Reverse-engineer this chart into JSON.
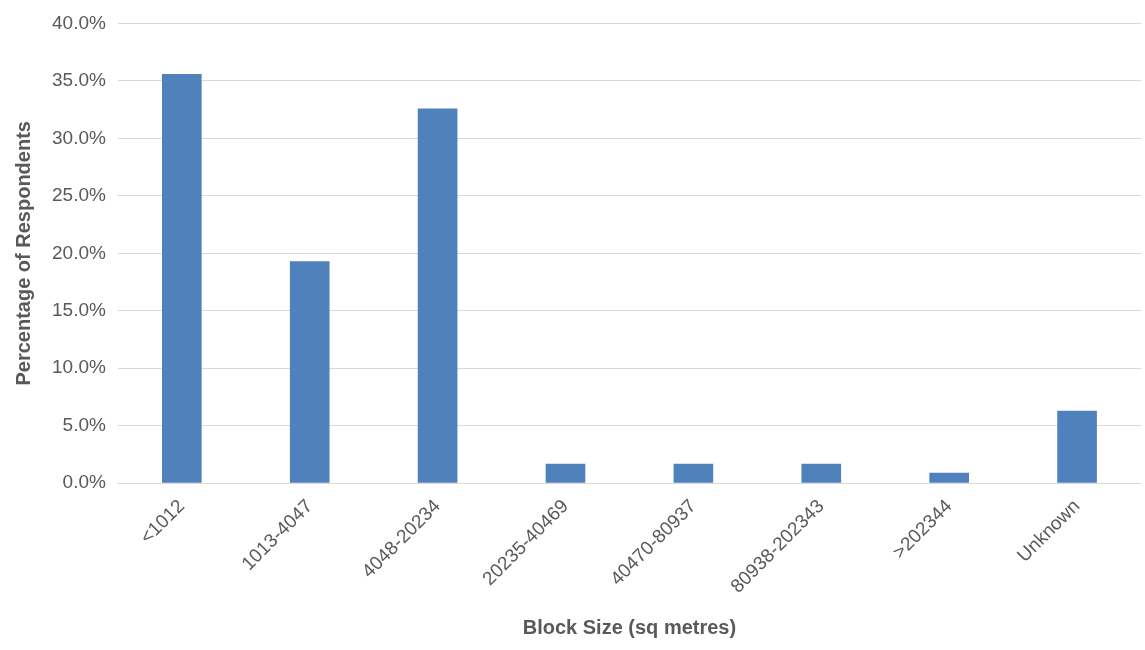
{
  "chart_data": {
    "type": "bar",
    "xlabel": "Block Size (sq metres)",
    "ylabel": "Percentage of Respondents",
    "categories": [
      "<1012",
      "1013-4047",
      "4048-20234",
      "20235-40469",
      "40470-80937",
      "80938-202343",
      ">202344",
      "Unknown"
    ],
    "values": [
      35.6,
      19.3,
      32.6,
      1.7,
      1.7,
      1.7,
      0.9,
      6.3
    ],
    "color": "#4f81bd",
    "ylim": [
      0,
      40
    ],
    "yticks": [
      {
        "value": 0,
        "label": "0.0%"
      },
      {
        "value": 5,
        "label": "5.0%"
      },
      {
        "value": 10,
        "label": "10.0%"
      },
      {
        "value": 15,
        "label": "15.0%"
      },
      {
        "value": 20,
        "label": "20.0%"
      },
      {
        "value": 25,
        "label": "25.0%"
      },
      {
        "value": 30,
        "label": "30.0%"
      },
      {
        "value": 35,
        "label": "35.0%"
      },
      {
        "value": 40,
        "label": "40.0%"
      }
    ],
    "grid": "y",
    "legend": false
  }
}
